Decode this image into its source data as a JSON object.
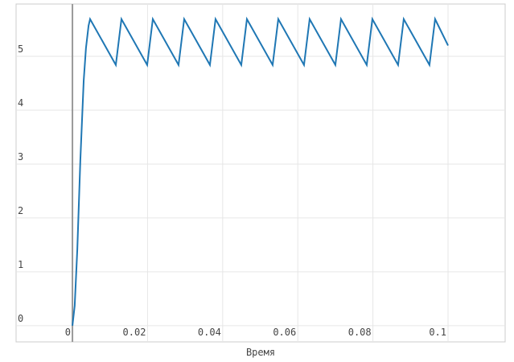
{
  "chart_data": {
    "type": "line",
    "x_label": "Время",
    "x": [
      0,
      0.0006,
      0.0013,
      0.0021,
      0.003,
      0.0036,
      0.0043,
      0.0047,
      0.01155,
      0.01305,
      0.0199,
      0.0214,
      0.02825,
      0.02975,
      0.0366,
      0.0381,
      0.04495,
      0.04645,
      0.0533,
      0.0548,
      0.06165,
      0.06315,
      0.07,
      0.0715,
      0.07835,
      0.07985,
      0.0867,
      0.0882,
      0.09505,
      0.09655,
      0.1
    ],
    "series": [
      {
        "color": "#1f77b4",
        "values": [
          0,
          0.37,
          1.42,
          3.06,
          4.55,
          5.15,
          5.57,
          5.69,
          4.84,
          5.69,
          4.84,
          5.69,
          4.84,
          5.69,
          4.84,
          5.69,
          4.84,
          5.69,
          4.84,
          5.69,
          4.84,
          5.69,
          4.84,
          5.69,
          4.84,
          5.69,
          4.84,
          5.69,
          4.84,
          5.69,
          5.2
        ]
      }
    ],
    "xlim": [
      -0.015,
      0.1152
    ],
    "ylim": [
      -0.3,
      5.97
    ],
    "xticks": [
      0,
      0.02,
      0.04,
      0.06,
      0.08,
      0.1
    ],
    "yticks": [
      0,
      1,
      2,
      3,
      4,
      5
    ],
    "grid": true
  }
}
